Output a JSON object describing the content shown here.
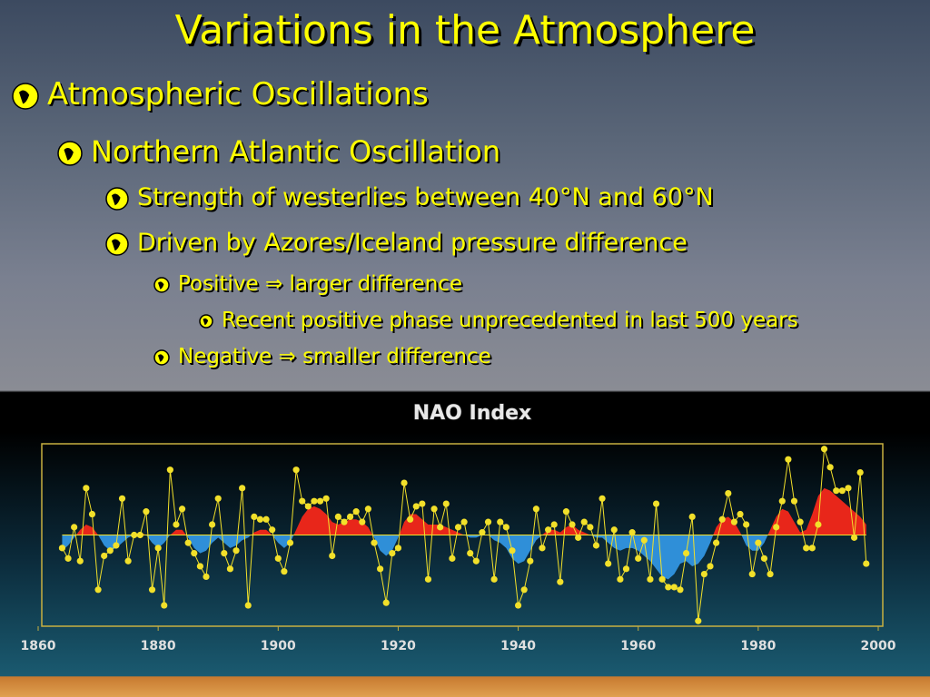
{
  "slide": {
    "title": "Variations in the Atmosphere",
    "bullets": [
      {
        "level": 1,
        "text": "Atmospheric Oscillations"
      },
      {
        "level": 2,
        "text": "Northern Atlantic Oscillation"
      },
      {
        "level": 3,
        "text": "Strength of westerlies between 40°N and 60°N"
      },
      {
        "level": 3,
        "text": "Driven by Azores/Iceland pressure difference"
      },
      {
        "level": 4,
        "text": "Positive ⇒ larger difference"
      },
      {
        "level": 5,
        "text": "Recent positive phase unprecedented in last 500 years"
      },
      {
        "level": 4,
        "text": "Negative ⇒ smaller difference"
      }
    ]
  },
  "chart_data": {
    "type": "line",
    "title": "NAO Index",
    "x": [
      1864,
      1865,
      1866,
      1867,
      1868,
      1869,
      1870,
      1871,
      1872,
      1873,
      1874,
      1875,
      1876,
      1877,
      1878,
      1879,
      1880,
      1881,
      1882,
      1883,
      1884,
      1885,
      1886,
      1887,
      1888,
      1889,
      1890,
      1891,
      1892,
      1893,
      1894,
      1895,
      1896,
      1897,
      1898,
      1899,
      1900,
      1901,
      1902,
      1903,
      1904,
      1905,
      1906,
      1907,
      1908,
      1909,
      1910,
      1911,
      1912,
      1913,
      1914,
      1915,
      1916,
      1917,
      1918,
      1919,
      1920,
      1921,
      1922,
      1923,
      1924,
      1925,
      1926,
      1927,
      1928,
      1929,
      1930,
      1931,
      1932,
      1933,
      1934,
      1935,
      1936,
      1937,
      1938,
      1939,
      1940,
      1941,
      1942,
      1943,
      1944,
      1945,
      1946,
      1947,
      1948,
      1949,
      1950,
      1951,
      1952,
      1953,
      1954,
      1955,
      1956,
      1957,
      1958,
      1959,
      1960,
      1961,
      1962,
      1963,
      1964,
      1965,
      1966,
      1967,
      1968,
      1969,
      1970,
      1971,
      1972,
      1973,
      1974,
      1975,
      1976,
      1977,
      1978,
      1979,
      1980,
      1981,
      1982,
      1983,
      1984,
      1985,
      1986,
      1987,
      1988,
      1989,
      1990,
      1991,
      1992,
      1993,
      1994,
      1995,
      1996,
      1997,
      1998
    ],
    "series": [
      {
        "color": "#f2e02a",
        "values": [
          -0.5,
          -0.9,
          0.3,
          -1.0,
          1.8,
          0.8,
          -2.1,
          -0.8,
          -0.6,
          -0.4,
          1.4,
          -1.0,
          0,
          0,
          0.9,
          -2.1,
          -0.5,
          -2.7,
          2.5,
          0.4,
          1.0,
          -0.3,
          -0.7,
          -1.2,
          -1.6,
          0.4,
          1.4,
          -0.7,
          -1.3,
          -0.6,
          1.8,
          -2.7,
          0.7,
          0.6,
          0.6,
          0.2,
          -0.9,
          -1.4,
          -0.3,
          2.5,
          1.3,
          1.1,
          1.3,
          1.3,
          1.4,
          -0.8,
          0.7,
          0.5,
          0.7,
          0.9,
          0.5,
          1.0,
          -0.3,
          -1.3,
          -2.6,
          -0.7,
          -0.5,
          2.0,
          0.6,
          1.1,
          1.2,
          -1.7,
          1.0,
          0.3,
          1.2,
          -0.9,
          0.3,
          0.5,
          -0.7,
          -1.0,
          0.1,
          0.5,
          -1.7,
          0.5,
          0.3,
          -0.6,
          -2.7,
          -2.1,
          -1.0,
          1.0,
          -0.5,
          0.2,
          0.4,
          -1.8,
          0.9,
          0.4,
          -0.1,
          0.5,
          0.3,
          -0.4,
          1.4,
          -1.1,
          0.2,
          -1.7,
          -1.3,
          0.1,
          -0.9,
          -0.2,
          -1.7,
          1.2,
          -1.7,
          -2.0,
          -2.0,
          -2.1,
          -0.7,
          0.7,
          -3.3,
          -1.5,
          -1.2,
          -0.3,
          0.6,
          1.6,
          0.5,
          0.8,
          0.4,
          -1.5,
          -0.3,
          -0.9,
          -1.5,
          0.3,
          1.3,
          2.9,
          1.3,
          0.5,
          -0.5,
          -0.5,
          0.4,
          3.3,
          2.6,
          1.7,
          1.7,
          1.8,
          -0.1,
          2.4,
          -1.1
        ]
      },
      {
        "color": "#2f8fd8",
        "positive_color": "#e8261a",
        "values": [
          -0.6,
          -0.4,
          -0.1,
          0.2,
          0.4,
          0.3,
          0,
          -0.4,
          -0.6,
          -0.5,
          -0.3,
          -0.1,
          0,
          0.1,
          0,
          -0.3,
          -0.5,
          -0.3,
          0,
          0.2,
          0.2,
          -0.1,
          -0.5,
          -0.7,
          -0.6,
          -0.3,
          -0.1,
          -0.3,
          -0.5,
          -0.4,
          -0.2,
          -0.1,
          0.1,
          0.2,
          0.2,
          0,
          -0.3,
          -0.5,
          -0.3,
          0.2,
          0.7,
          1.0,
          1.1,
          1.0,
          0.8,
          0.5,
          0.4,
          0.5,
          0.6,
          0.6,
          0.5,
          0.3,
          -0.1,
          -0.6,
          -0.8,
          -0.6,
          -0.1,
          0.5,
          0.8,
          0.8,
          0.6,
          0.4,
          0.4,
          0.4,
          0.3,
          0.2,
          0.1,
          0,
          -0.1,
          -0.1,
          0,
          0,
          -0.2,
          -0.3,
          -0.5,
          -0.9,
          -1.1,
          -1.0,
          -0.6,
          -0.2,
          0,
          0.2,
          0.2,
          0.1,
          0.3,
          0.4,
          0.2,
          0.1,
          0,
          -0.1,
          -0.1,
          -0.3,
          -0.5,
          -0.6,
          -0.5,
          -0.5,
          -0.6,
          -0.8,
          -1.0,
          -1.3,
          -1.6,
          -1.7,
          -1.5,
          -1.1,
          -1.0,
          -1.2,
          -1.1,
          -0.8,
          -0.3,
          0.3,
          0.6,
          0.7,
          0.5,
          0.1,
          -0.4,
          -0.6,
          -0.6,
          -0.3,
          0.2,
          0.7,
          1.0,
          0.9,
          0.5,
          0.1,
          0.2,
          0.8,
          1.5,
          1.8,
          1.7,
          1.5,
          1.3,
          1.1,
          0.9,
          0.7,
          0.4
        ]
      }
    ],
    "xlim": [
      1860,
      2000
    ],
    "xticks": [
      1860,
      1880,
      1900,
      1920,
      1940,
      1960,
      1980,
      2000
    ],
    "ylim": [
      -3.5,
      3.5
    ]
  }
}
